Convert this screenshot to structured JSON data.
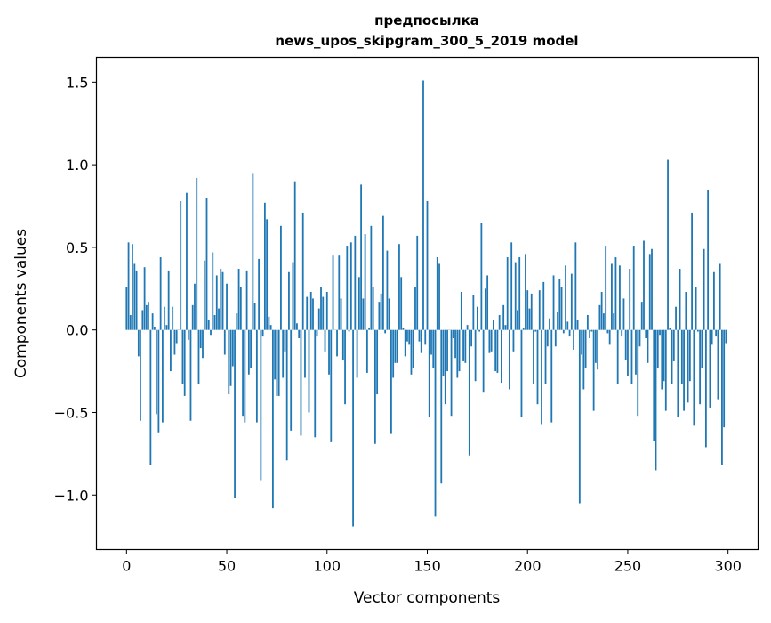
{
  "chart_data": {
    "type": "bar",
    "title_line1": "предпосылка",
    "title_line2": "news_upos_skipgram_300_5_2019 model",
    "xlabel": "Vector components",
    "ylabel": "Components values",
    "xlim": [
      -15,
      315
    ],
    "ylim": [
      -1.33,
      1.65
    ],
    "xticks": [
      0,
      50,
      100,
      150,
      200,
      250,
      300
    ],
    "xtick_labels": [
      "0",
      "50",
      "100",
      "150",
      "200",
      "250",
      "300"
    ],
    "yticks": [
      -1.0,
      -0.5,
      0.0,
      0.5,
      1.0,
      1.5
    ],
    "ytick_labels": [
      "−1.0",
      "−0.5",
      "0.0",
      "0.5",
      "1.0",
      "1.5"
    ],
    "bar_color": "#1f77b4",
    "grid": false,
    "values": [
      0.26,
      0.53,
      0.09,
      0.52,
      0.4,
      0.36,
      -0.16,
      -0.55,
      0.12,
      0.38,
      0.15,
      0.17,
      -0.82,
      0.1,
      0.02,
      -0.51,
      -0.62,
      0.44,
      -0.56,
      0.14,
      0.03,
      0.36,
      -0.25,
      0.14,
      -0.15,
      -0.08,
      0.0,
      0.78,
      -0.33,
      -0.4,
      0.83,
      -0.06,
      -0.55,
      0.15,
      0.28,
      0.92,
      -0.33,
      -0.11,
      -0.17,
      0.42,
      0.8,
      0.06,
      -0.03,
      0.47,
      0.09,
      0.33,
      0.13,
      0.37,
      0.35,
      -0.15,
      0.28,
      -0.39,
      -0.34,
      -0.22,
      -1.02,
      0.1,
      0.37,
      0.26,
      -0.52,
      -0.56,
      0.36,
      -0.27,
      -0.23,
      0.95,
      0.16,
      -0.56,
      0.43,
      -0.91,
      -0.04,
      0.77,
      0.67,
      0.08,
      0.03,
      -1.08,
      -0.3,
      -0.4,
      -0.4,
      0.63,
      -0.29,
      -0.13,
      -0.79,
      0.35,
      -0.61,
      0.41,
      0.9,
      0.04,
      -0.05,
      -0.64,
      0.71,
      -0.29,
      0.2,
      -0.5,
      0.23,
      0.19,
      -0.65,
      -0.04,
      0.13,
      0.26,
      0.2,
      -0.13,
      0.23,
      -0.27,
      -0.68,
      0.45,
      0.0,
      -0.16,
      0.45,
      0.19,
      -0.18,
      -0.45,
      0.51,
      -0.01,
      0.53,
      -1.19,
      0.57,
      -0.29,
      0.32,
      0.88,
      0.19,
      0.58,
      -0.26,
      0.01,
      0.63,
      0.26,
      -0.69,
      -0.39,
      0.17,
      0.22,
      0.69,
      -0.02,
      0.48,
      0.19,
      -0.63,
      -0.29,
      -0.2,
      -0.2,
      0.52,
      0.32,
      0.01,
      -0.16,
      -0.07,
      -0.09,
      -0.27,
      -0.23,
      0.26,
      0.57,
      -0.07,
      -0.14,
      1.51,
      -0.09,
      0.78,
      -0.53,
      -0.15,
      -0.23,
      -1.13,
      0.44,
      0.4,
      -0.93,
      -0.28,
      -0.45,
      -0.25,
      0.0,
      -0.52,
      -0.05,
      -0.17,
      -0.29,
      -0.25,
      0.23,
      -0.19,
      -0.2,
      0.03,
      -0.76,
      -0.1,
      0.21,
      -0.31,
      0.14,
      -0.01,
      0.65,
      -0.38,
      0.25,
      0.33,
      -0.14,
      -0.13,
      0.06,
      -0.25,
      -0.26,
      0.09,
      -0.32,
      0.15,
      0.03,
      0.44,
      -0.36,
      0.53,
      -0.13,
      0.41,
      0.12,
      0.44,
      -0.53,
      0.01,
      0.46,
      0.24,
      0.13,
      0.22,
      -0.33,
      -0.01,
      -0.45,
      0.24,
      -0.57,
      0.29,
      -0.33,
      -0.1,
      0.07,
      -0.56,
      0.33,
      -0.1,
      0.11,
      0.31,
      0.26,
      -0.02,
      0.39,
      0.05,
      -0.04,
      0.34,
      -0.12,
      0.53,
      0.06,
      -1.05,
      -0.15,
      -0.36,
      -0.23,
      0.09,
      -0.05,
      -0.01,
      -0.49,
      -0.2,
      -0.24,
      0.15,
      0.23,
      0.1,
      0.51,
      -0.02,
      -0.09,
      0.4,
      0.1,
      0.44,
      -0.33,
      0.39,
      -0.04,
      0.19,
      -0.18,
      -0.28,
      0.37,
      -0.33,
      0.51,
      -0.27,
      -0.52,
      -0.1,
      0.17,
      0.54,
      -0.05,
      -0.2,
      0.46,
      0.49,
      -0.67,
      -0.85,
      -0.23,
      -0.03,
      -0.36,
      -0.31,
      -0.49,
      1.03,
      0.01,
      -0.33,
      -0.19,
      0.14,
      -0.53,
      0.37,
      -0.33,
      -0.49,
      0.23,
      -0.44,
      -0.31,
      0.71,
      -0.58,
      0.26,
      -0.01,
      -0.45,
      -0.23,
      0.49,
      -0.71,
      0.85,
      -0.47,
      -0.09,
      0.35,
      -0.04,
      -0.42,
      0.4,
      -0.82,
      -0.59,
      -0.08
    ]
  }
}
